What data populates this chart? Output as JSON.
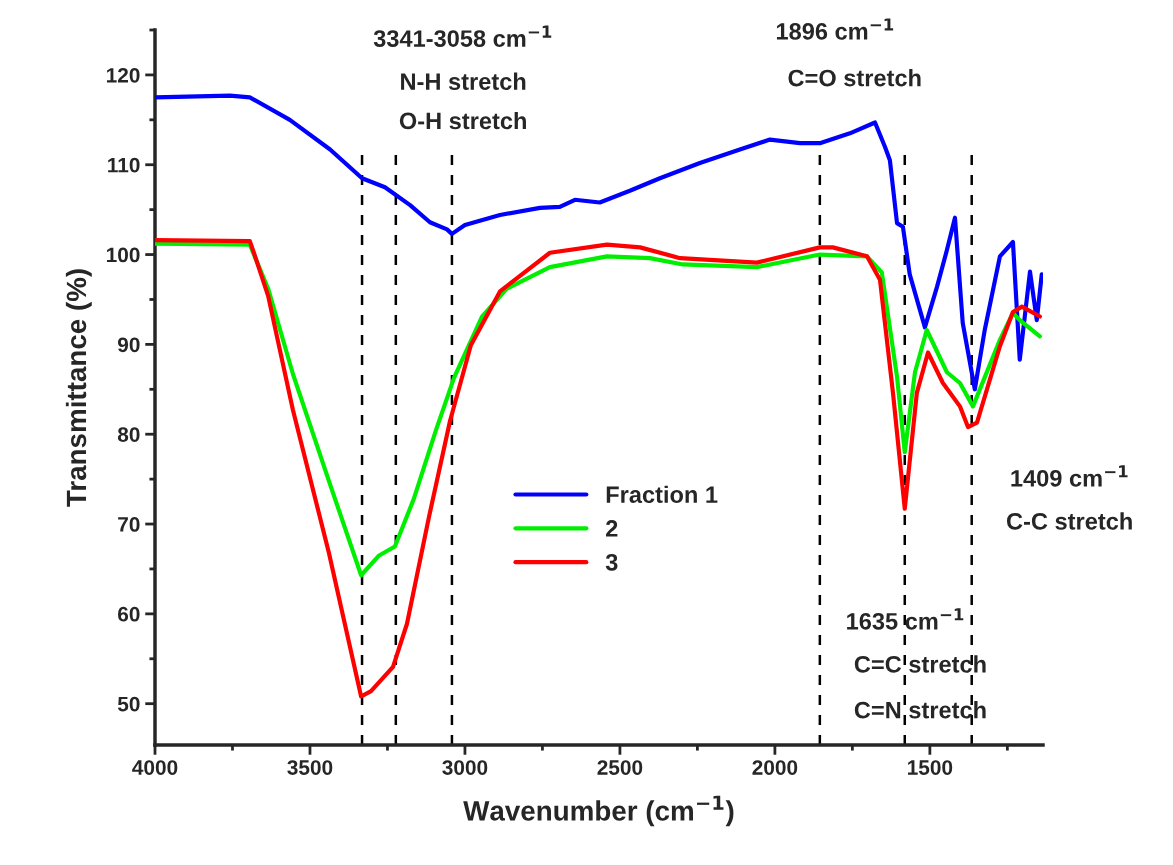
{
  "chart_data": {
    "type": "line",
    "xlabel": "Wavenumber (cm$^{−1}$)",
    "ylabel": "Transmittance (%)",
    "xlim": [
      4000,
      1135
    ],
    "xticks": [
      4000,
      3500,
      3000,
      2500,
      2000,
      1500
    ],
    "ylim": [
      45.4,
      125
    ],
    "yticks": [
      50,
      60,
      70,
      80,
      90,
      100,
      110,
      120
    ],
    "grid": false,
    "legend": "center",
    "marker": "none",
    "line_style": "solid",
    "series": [
      {
        "name": "Fraction 1",
        "color": "#0000ff",
        "x": [
          4000,
          3758,
          3694,
          3565,
          3435,
          3332,
          3258,
          3177,
          3113,
          3058,
          3042,
          3000,
          2887,
          2758,
          2694,
          2645,
          2565,
          2468,
          2371,
          2242,
          2113,
          2016,
          1919,
          1855,
          1758,
          1677,
          1645,
          1629,
          1606,
          1587,
          1565,
          1516,
          1477,
          1445,
          1419,
          1394,
          1355,
          1323,
          1274,
          1232,
          1210,
          1177,
          1155,
          1139
        ],
        "values": [
          117.5,
          117.7,
          117.5,
          115,
          111.7,
          108.5,
          107.5,
          105.5,
          103.6,
          102.8,
          102.3,
          103.3,
          104.4,
          105.2,
          105.3,
          106.1,
          105.8,
          107.1,
          108.5,
          110.2,
          111.7,
          112.8,
          112.4,
          112.4,
          113.5,
          114.7,
          112,
          110.5,
          103.5,
          103.1,
          97.8,
          91.9,
          96.4,
          100.5,
          104.1,
          92.4,
          85,
          91.6,
          99.8,
          101.4,
          88.3,
          98.1,
          92.7,
          97.8
        ]
      },
      {
        "name": "2",
        "color": "#00ee00",
        "x": [
          4000,
          3694,
          3635,
          3555,
          3439,
          3335,
          3277,
          3226,
          3165,
          3094,
          3035,
          2945,
          2865,
          2726,
          2542,
          2403,
          2297,
          2058,
          1855,
          1703,
          1655,
          1606,
          1581,
          1548,
          1510,
          1445,
          1403,
          1361,
          1274,
          1232,
          1210,
          1145
        ],
        "values": [
          101.2,
          101.1,
          96.2,
          86.7,
          74.8,
          64.3,
          66.5,
          67.5,
          72.8,
          80.4,
          86.3,
          93.1,
          96.2,
          98.6,
          99.8,
          99.6,
          98.9,
          98.6,
          100,
          99.8,
          98,
          86.4,
          78,
          86.9,
          91.6,
          86.9,
          85.7,
          83.1,
          90.5,
          93.5,
          92.7,
          90.9
        ]
      },
      {
        "name": "3",
        "color": "#ff0000",
        "x": [
          4000,
          3694,
          3681,
          3635,
          3555,
          3439,
          3335,
          3303,
          3232,
          3187,
          3116,
          3048,
          2981,
          2887,
          2726,
          2542,
          2435,
          2306,
          2058,
          1855,
          1813,
          1703,
          1661,
          1619,
          1581,
          1542,
          1506,
          1458,
          1403,
          1377,
          1348,
          1274,
          1232,
          1203,
          1145
        ],
        "values": [
          101.6,
          101.5,
          100.2,
          95.4,
          82.7,
          66.8,
          50.8,
          51.4,
          54.1,
          58.9,
          70.8,
          81.5,
          89.9,
          95.9,
          100.2,
          101.1,
          100.8,
          99.6,
          99.1,
          100.8,
          100.8,
          99.8,
          97.2,
          84.6,
          71.7,
          84.6,
          89.1,
          85.7,
          83.1,
          80.8,
          81.3,
          89.8,
          93.6,
          94.2,
          93.1
        ]
      }
    ],
    "ref_lines": [
      {
        "axis": "x",
        "value": 3332,
        "color": "#000000",
        "line_style": "dashed"
      },
      {
        "axis": "x",
        "value": 3223,
        "color": "#000000",
        "line_style": "dashed"
      },
      {
        "axis": "x",
        "value": 3042,
        "color": "#000000",
        "line_style": "dashed"
      },
      {
        "axis": "x",
        "value": 1855,
        "color": "#000000",
        "line_style": "dashed"
      },
      {
        "axis": "x",
        "value": 1581,
        "color": "#000000",
        "line_style": "dashed"
      },
      {
        "axis": "x",
        "value": 1365,
        "color": "#000000",
        "line_style": "dashed"
      }
    ],
    "annotations": [
      "3341-3058 cm$^{−1}$",
      "N-H stretch",
      "O-H stretch",
      "1896 cm$^{−1}$",
      "C=O stretch",
      "1409 cm$^{−1}$",
      "C-C stretch",
      "1635 cm$^{−1}$",
      "C=C stretch",
      "C=N stretch"
    ]
  }
}
